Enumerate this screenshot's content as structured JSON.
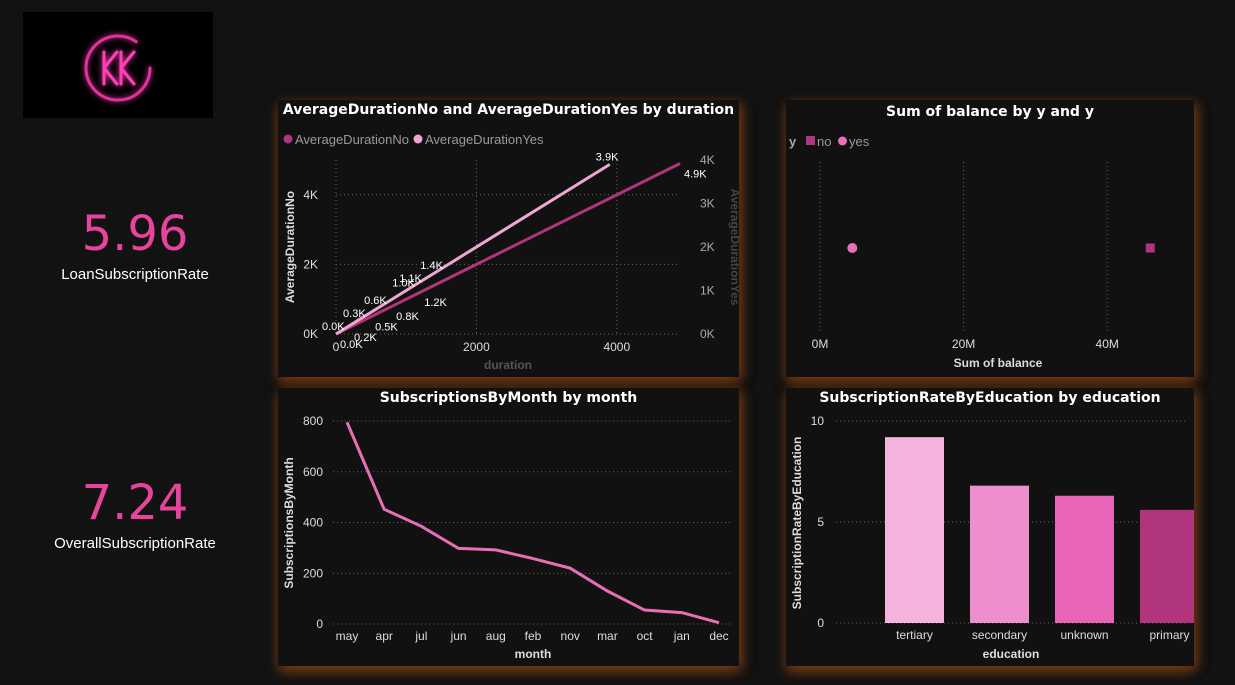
{
  "kpis": {
    "loan": {
      "value": "5.96",
      "label": "LoanSubscriptionRate"
    },
    "overall": {
      "value": "7.24",
      "label": "OverallSubscriptionRate"
    }
  },
  "colors": {
    "accent": "#e8449e",
    "no_series": "#b0357d",
    "yes_series": "#f0a6d2"
  },
  "chart_data": [
    {
      "type": "line",
      "title": "AverageDurationNo and AverageDurationYes by duration",
      "xlabel": "duration",
      "ylabel": "AverageDurationNo",
      "y2label": "AverageDurationYes",
      "xlim": [
        0,
        4900
      ],
      "ylim": [
        0,
        5000
      ],
      "y2lim": [
        0,
        4000
      ],
      "xticks": [
        "0",
        "2000",
        "4000"
      ],
      "yticks": [
        "0K",
        "2K",
        "4K"
      ],
      "y2ticks": [
        "0K",
        "1K",
        "2K",
        "3K",
        "4K"
      ],
      "legend": [
        "AverageDurationNo",
        "AverageDurationYes"
      ],
      "series": [
        {
          "name": "AverageDurationNo",
          "color": "#b0357d",
          "axis": "y",
          "x": [
            0,
            200,
            500,
            800,
            1200,
            4900
          ],
          "y": [
            0,
            200,
            500,
            800,
            1200,
            4900
          ],
          "labels": [
            "0.0K",
            "0.2K",
            "0.5K",
            "0.8K",
            "1.2K",
            "4.9K"
          ]
        },
        {
          "name": "AverageDurationYes",
          "color": "#f0a6d2",
          "axis": "y2",
          "x": [
            0,
            300,
            600,
            1000,
            1100,
            1400,
            3900
          ],
          "y": [
            0,
            300,
            600,
            1000,
            1100,
            1400,
            3900
          ],
          "labels": [
            "0.0K",
            "0.3K",
            "0.6K",
            "1.0K",
            "1.1K",
            "1.4K",
            "3.9K"
          ]
        }
      ]
    },
    {
      "type": "scatter",
      "title": "Sum of balance by y and y",
      "xlabel": "Sum of balance",
      "xlim": [
        0,
        50000000
      ],
      "xticks": [
        "0M",
        "20M",
        "40M"
      ],
      "legend_title": "y",
      "legend": [
        "no",
        "yes"
      ],
      "series": [
        {
          "name": "no",
          "color": "#b0357d",
          "shape": "square",
          "x": 46000000
        },
        {
          "name": "yes",
          "color": "#e86fb6",
          "shape": "circle",
          "x": 4500000
        }
      ]
    },
    {
      "type": "line",
      "title": "SubscriptionsByMonth by month",
      "xlabel": "month",
      "ylabel": "SubscriptionsByMonth",
      "ylim": [
        0,
        800
      ],
      "yticks": [
        "0",
        "200",
        "400",
        "600",
        "800"
      ],
      "categories": [
        "may",
        "apr",
        "jul",
        "jun",
        "aug",
        "feb",
        "nov",
        "mar",
        "oct",
        "jan",
        "dec"
      ],
      "values": [
        795,
        452,
        385,
        298,
        292,
        258,
        220,
        130,
        55,
        45,
        5
      ]
    },
    {
      "type": "bar",
      "title": "SubscriptionRateByEducation by education",
      "xlabel": "education",
      "ylabel": "SubscriptionRateByEducation",
      "ylim": [
        0,
        10
      ],
      "yticks": [
        "0",
        "5",
        "10"
      ],
      "categories": [
        "tertiary",
        "secondary",
        "unknown",
        "primary"
      ],
      "values": [
        9.2,
        6.8,
        6.3,
        5.6
      ],
      "colors": [
        "#f4b3dc",
        "#ec8fcc",
        "#e864b6",
        "#b0357d"
      ]
    }
  ]
}
